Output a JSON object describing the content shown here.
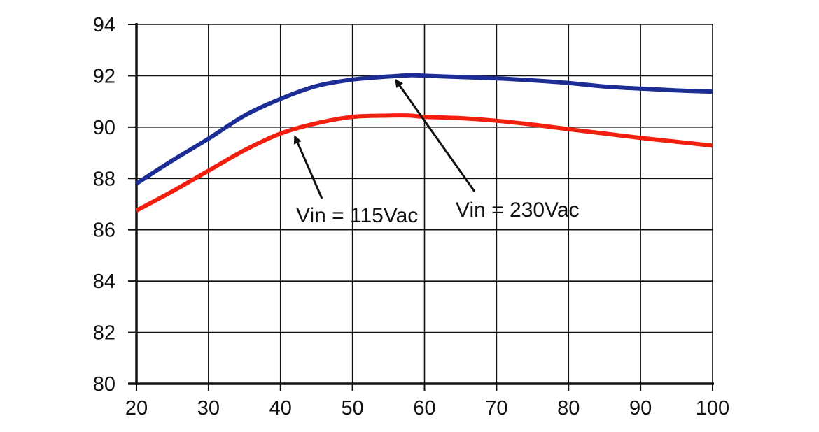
{
  "chart_data": {
    "type": "line",
    "title": "",
    "xlabel": "",
    "ylabel": "",
    "xlim": [
      20,
      100
    ],
    "ylim": [
      80,
      94
    ],
    "xticks": [
      20,
      30,
      40,
      50,
      60,
      70,
      80,
      90,
      100
    ],
    "yticks": [
      80,
      82,
      84,
      86,
      88,
      90,
      92,
      94
    ],
    "xtick_labels": [
      "20",
      "30",
      "40",
      "50",
      "60",
      "70",
      "80",
      "90",
      "100"
    ],
    "ytick_labels": [
      "80",
      "82",
      "84",
      "86",
      "88",
      "90",
      "92",
      "94"
    ],
    "grid": true,
    "legend": "none",
    "series": [
      {
        "name": "Vin = 230Vac",
        "color": "#1c2e96",
        "x": [
          20,
          25,
          30,
          35,
          40,
          45,
          50,
          55,
          58,
          60,
          65,
          70,
          75,
          80,
          85,
          90,
          95,
          100
        ],
        "y": [
          87.8,
          88.7,
          89.55,
          90.45,
          91.1,
          91.6,
          91.85,
          91.97,
          92.02,
          92.0,
          91.95,
          91.9,
          91.82,
          91.72,
          91.58,
          91.5,
          91.43,
          91.38
        ]
      },
      {
        "name": "Vin = 115Vac",
        "color": "#f21f0f",
        "x": [
          20,
          25,
          30,
          35,
          40,
          45,
          50,
          55,
          58,
          60,
          65,
          70,
          75,
          80,
          85,
          90,
          95,
          100
        ],
        "y": [
          86.75,
          87.5,
          88.3,
          89.1,
          89.75,
          90.15,
          90.4,
          90.45,
          90.45,
          90.4,
          90.35,
          90.25,
          90.1,
          89.92,
          89.75,
          89.58,
          89.43,
          89.28
        ]
      }
    ],
    "annotations": [
      {
        "text": "Vin = 115Vac",
        "points_to": [
          42,
          89.8
        ],
        "series": "Vin = 115Vac"
      },
      {
        "text": "Vin = 230Vac",
        "points_to": [
          56,
          92.0
        ],
        "series": "Vin = 230Vac"
      }
    ]
  }
}
